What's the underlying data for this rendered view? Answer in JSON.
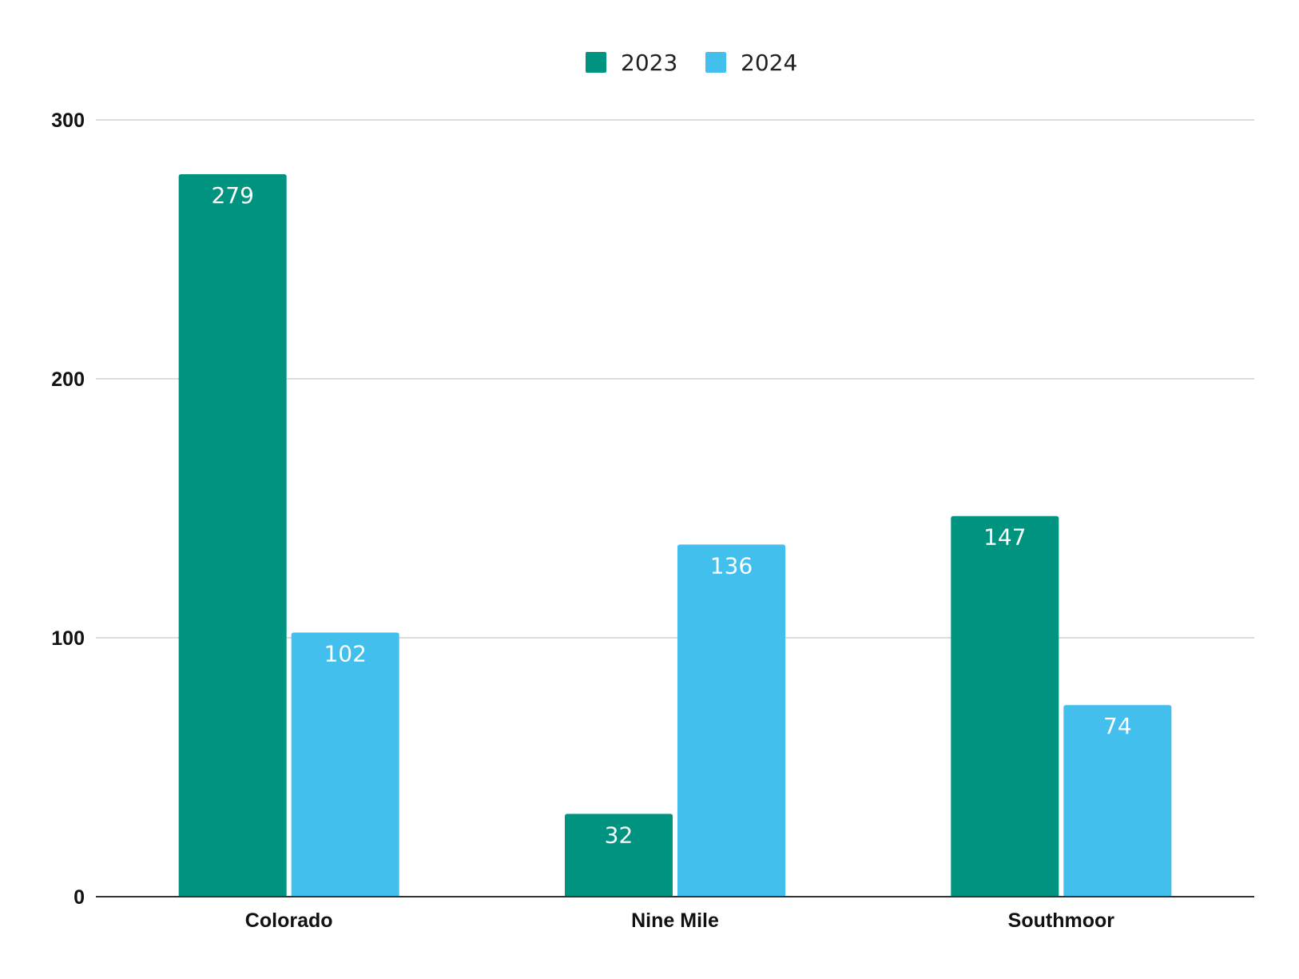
{
  "chart_data": {
    "type": "bar",
    "categories": [
      "Colorado",
      "Nine Mile",
      "Southmoor"
    ],
    "series": [
      {
        "name": "2023",
        "color": "#009380",
        "values": [
          279,
          32,
          147
        ]
      },
      {
        "name": "2024",
        "color": "#43BFEE",
        "values": [
          102,
          136,
          74
        ]
      }
    ],
    "ylim": [
      0,
      300
    ],
    "yticks": [
      0,
      100,
      200,
      300
    ],
    "grid": true,
    "legend_position": "top-center",
    "title": "",
    "xlabel": "",
    "ylabel": ""
  }
}
